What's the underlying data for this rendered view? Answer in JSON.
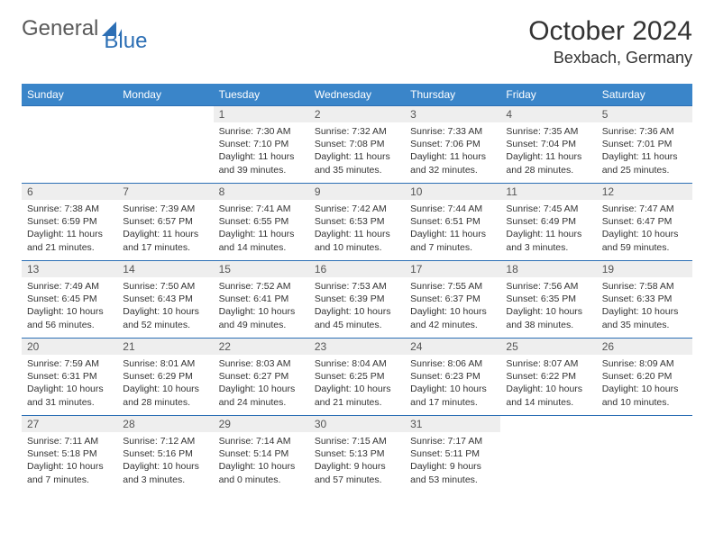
{
  "colors": {
    "header_bg": "#3a85c9",
    "header_text": "#ffffff",
    "daynum_bg": "#eeeeee",
    "daynum_text": "#555555",
    "cell_border": "#2c6fb5",
    "body_text": "#333333",
    "logo_gray": "#5a5a5a",
    "logo_blue": "#2c6fb5",
    "background": "#ffffff"
  },
  "logo": {
    "part1": "General",
    "part2": "Blue"
  },
  "title": "October 2024",
  "location": "Bexbach, Germany",
  "weekdays": [
    "Sunday",
    "Monday",
    "Tuesday",
    "Wednesday",
    "Thursday",
    "Friday",
    "Saturday"
  ],
  "layout": {
    "first_weekday_index": 2,
    "days_in_month": 31,
    "rows": 5,
    "cols": 7
  },
  "typography": {
    "title_fontsize_pt": 22,
    "location_fontsize_pt": 13,
    "weekday_fontsize_pt": 9,
    "daynum_fontsize_pt": 9,
    "body_fontsize_pt": 8
  },
  "days": [
    {
      "n": 1,
      "sunrise": "7:30 AM",
      "sunset": "7:10 PM",
      "daylight": "11 hours and 39 minutes."
    },
    {
      "n": 2,
      "sunrise": "7:32 AM",
      "sunset": "7:08 PM",
      "daylight": "11 hours and 35 minutes."
    },
    {
      "n": 3,
      "sunrise": "7:33 AM",
      "sunset": "7:06 PM",
      "daylight": "11 hours and 32 minutes."
    },
    {
      "n": 4,
      "sunrise": "7:35 AM",
      "sunset": "7:04 PM",
      "daylight": "11 hours and 28 minutes."
    },
    {
      "n": 5,
      "sunrise": "7:36 AM",
      "sunset": "7:01 PM",
      "daylight": "11 hours and 25 minutes."
    },
    {
      "n": 6,
      "sunrise": "7:38 AM",
      "sunset": "6:59 PM",
      "daylight": "11 hours and 21 minutes."
    },
    {
      "n": 7,
      "sunrise": "7:39 AM",
      "sunset": "6:57 PM",
      "daylight": "11 hours and 17 minutes."
    },
    {
      "n": 8,
      "sunrise": "7:41 AM",
      "sunset": "6:55 PM",
      "daylight": "11 hours and 14 minutes."
    },
    {
      "n": 9,
      "sunrise": "7:42 AM",
      "sunset": "6:53 PM",
      "daylight": "11 hours and 10 minutes."
    },
    {
      "n": 10,
      "sunrise": "7:44 AM",
      "sunset": "6:51 PM",
      "daylight": "11 hours and 7 minutes."
    },
    {
      "n": 11,
      "sunrise": "7:45 AM",
      "sunset": "6:49 PM",
      "daylight": "11 hours and 3 minutes."
    },
    {
      "n": 12,
      "sunrise": "7:47 AM",
      "sunset": "6:47 PM",
      "daylight": "10 hours and 59 minutes."
    },
    {
      "n": 13,
      "sunrise": "7:49 AM",
      "sunset": "6:45 PM",
      "daylight": "10 hours and 56 minutes."
    },
    {
      "n": 14,
      "sunrise": "7:50 AM",
      "sunset": "6:43 PM",
      "daylight": "10 hours and 52 minutes."
    },
    {
      "n": 15,
      "sunrise": "7:52 AM",
      "sunset": "6:41 PM",
      "daylight": "10 hours and 49 minutes."
    },
    {
      "n": 16,
      "sunrise": "7:53 AM",
      "sunset": "6:39 PM",
      "daylight": "10 hours and 45 minutes."
    },
    {
      "n": 17,
      "sunrise": "7:55 AM",
      "sunset": "6:37 PM",
      "daylight": "10 hours and 42 minutes."
    },
    {
      "n": 18,
      "sunrise": "7:56 AM",
      "sunset": "6:35 PM",
      "daylight": "10 hours and 38 minutes."
    },
    {
      "n": 19,
      "sunrise": "7:58 AM",
      "sunset": "6:33 PM",
      "daylight": "10 hours and 35 minutes."
    },
    {
      "n": 20,
      "sunrise": "7:59 AM",
      "sunset": "6:31 PM",
      "daylight": "10 hours and 31 minutes."
    },
    {
      "n": 21,
      "sunrise": "8:01 AM",
      "sunset": "6:29 PM",
      "daylight": "10 hours and 28 minutes."
    },
    {
      "n": 22,
      "sunrise": "8:03 AM",
      "sunset": "6:27 PM",
      "daylight": "10 hours and 24 minutes."
    },
    {
      "n": 23,
      "sunrise": "8:04 AM",
      "sunset": "6:25 PM",
      "daylight": "10 hours and 21 minutes."
    },
    {
      "n": 24,
      "sunrise": "8:06 AM",
      "sunset": "6:23 PM",
      "daylight": "10 hours and 17 minutes."
    },
    {
      "n": 25,
      "sunrise": "8:07 AM",
      "sunset": "6:22 PM",
      "daylight": "10 hours and 14 minutes."
    },
    {
      "n": 26,
      "sunrise": "8:09 AM",
      "sunset": "6:20 PM",
      "daylight": "10 hours and 10 minutes."
    },
    {
      "n": 27,
      "sunrise": "7:11 AM",
      "sunset": "5:18 PM",
      "daylight": "10 hours and 7 minutes."
    },
    {
      "n": 28,
      "sunrise": "7:12 AM",
      "sunset": "5:16 PM",
      "daylight": "10 hours and 3 minutes."
    },
    {
      "n": 29,
      "sunrise": "7:14 AM",
      "sunset": "5:14 PM",
      "daylight": "10 hours and 0 minutes."
    },
    {
      "n": 30,
      "sunrise": "7:15 AM",
      "sunset": "5:13 PM",
      "daylight": "9 hours and 57 minutes."
    },
    {
      "n": 31,
      "sunrise": "7:17 AM",
      "sunset": "5:11 PM",
      "daylight": "9 hours and 53 minutes."
    }
  ],
  "labels": {
    "sunrise": "Sunrise:",
    "sunset": "Sunset:",
    "daylight": "Daylight:"
  }
}
